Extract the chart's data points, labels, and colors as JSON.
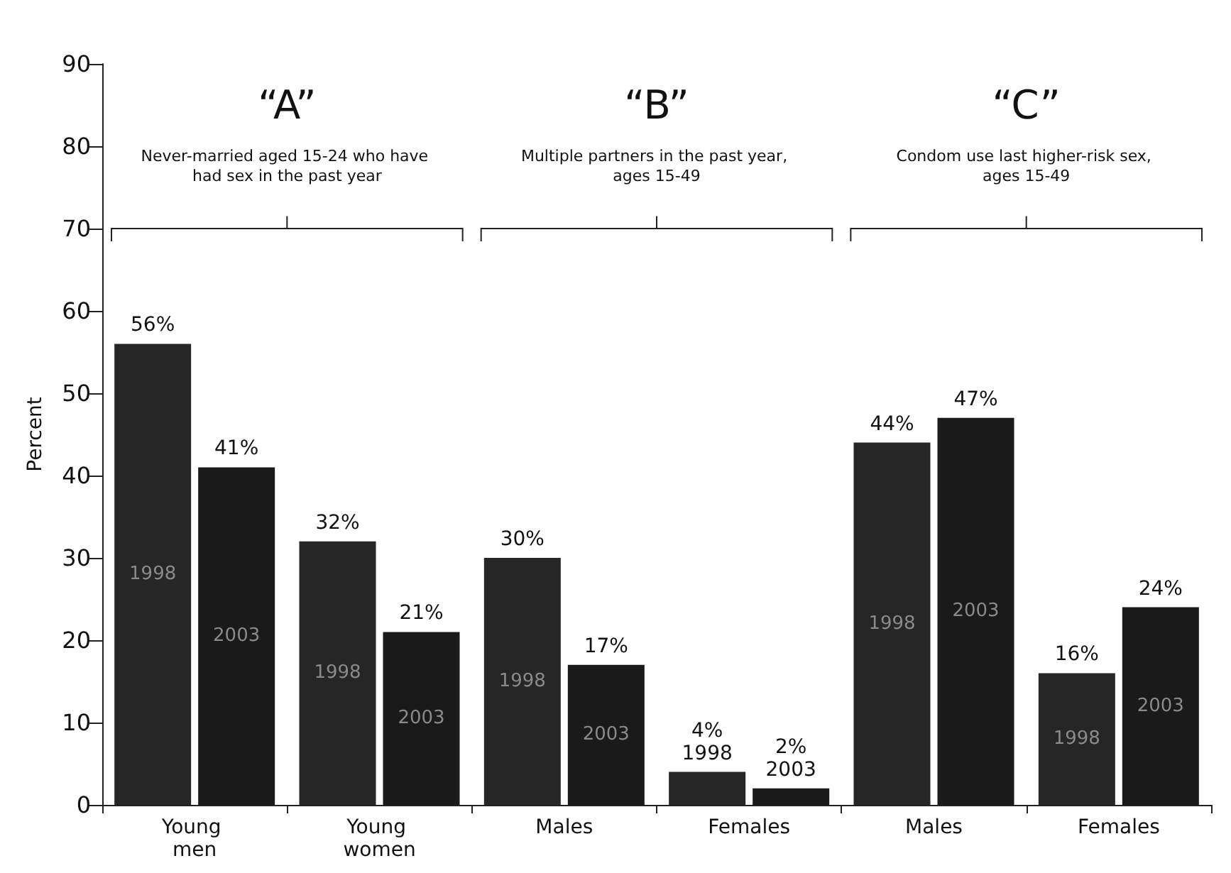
{
  "chart_data": {
    "type": "bar",
    "ylabel": "Percent",
    "categories": [
      "Young men",
      "Young women",
      "Males",
      "Females",
      "Males",
      "Females"
    ],
    "series": [
      {
        "name": "1998",
        "color": "#262626",
        "values": [
          56,
          32,
          30,
          4,
          44,
          16
        ],
        "value_labels": [
          "56%",
          "32%",
          "30%",
          "4%",
          "44%",
          "16%"
        ]
      },
      {
        "name": "2003",
        "color": "#1a1a1a",
        "values": [
          41,
          21,
          17,
          2,
          47,
          24
        ],
        "value_labels": [
          "41%",
          "21%",
          "17%",
          "2%",
          "47%",
          "24%"
        ]
      }
    ],
    "ylim": [
      0,
      90
    ],
    "yticks": [
      0,
      10,
      20,
      30,
      40,
      50,
      60,
      70,
      80,
      90
    ],
    "annotations": [
      "“A”",
      "Never-married aged 15-24 who have had sex in the past year",
      "“B”",
      "Multiple partners in the past year, ages 15-49",
      "“C”",
      "Condom use last higher-risk sex, ages 15-49"
    ],
    "grid": false,
    "legend": false
  }
}
